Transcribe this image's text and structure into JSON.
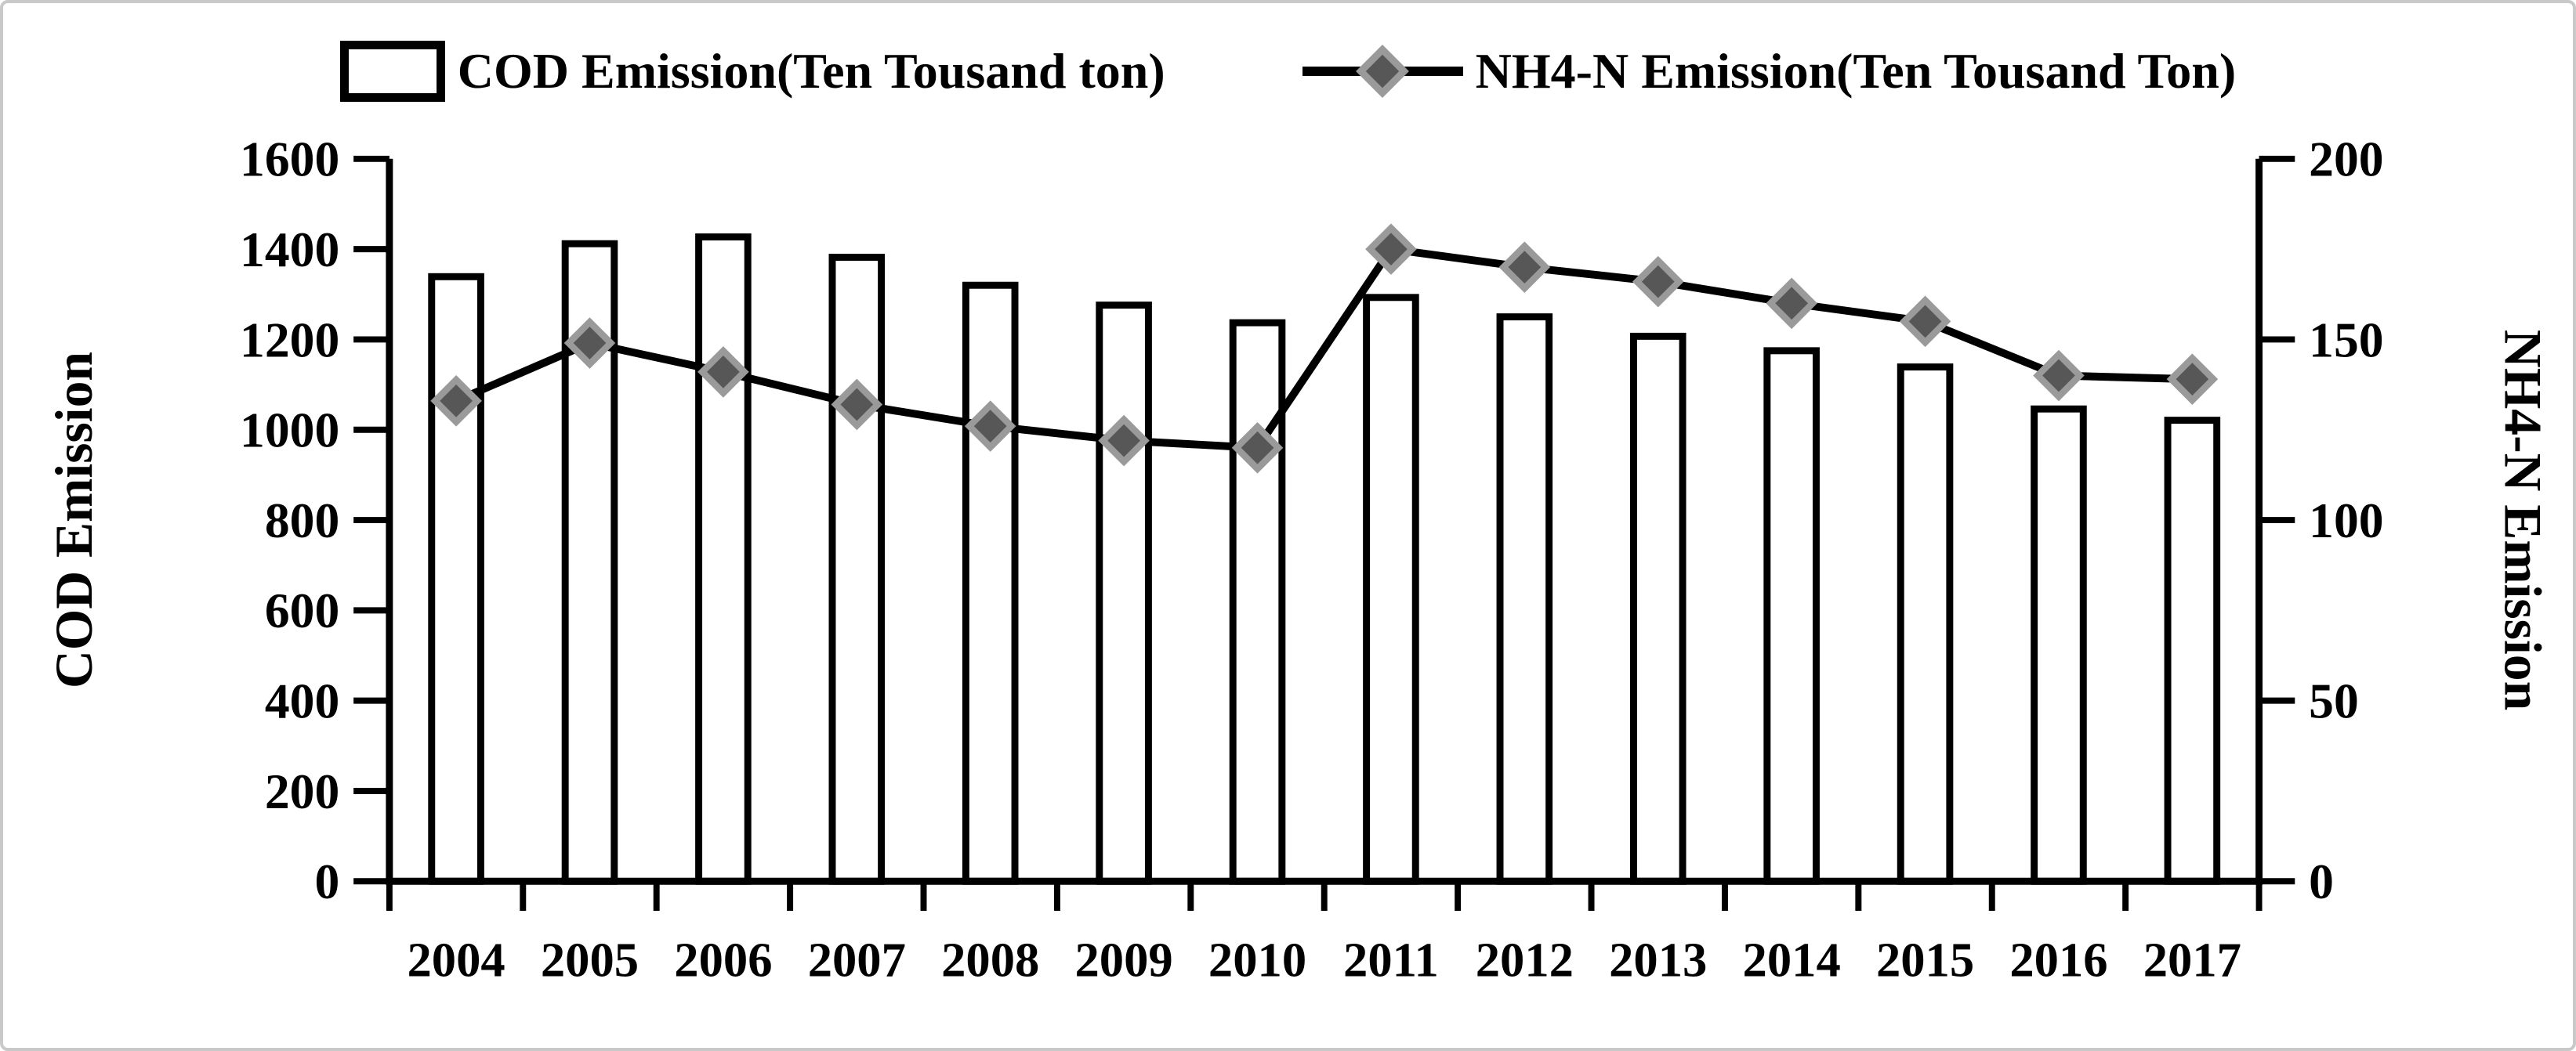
{
  "chart_data": {
    "type": "combo",
    "categories": [
      "2004",
      "2005",
      "2006",
      "2007",
      "2008",
      "2009",
      "2010",
      "2011",
      "2012",
      "2013",
      "2014",
      "2015",
      "2016",
      "2017"
    ],
    "series": [
      {
        "name": "COD Emission(Ten Tousand ton)",
        "type": "bar",
        "axis": "left",
        "values": [
          1339,
          1412,
          1427,
          1382,
          1320,
          1276,
          1237,
          1293,
          1250,
          1207,
          1175,
          1139,
          1046,
          1021
        ]
      },
      {
        "name": "NH4-N Emission(Ten Tousand Ton)",
        "type": "line",
        "axis": "right",
        "values": [
          133,
          149,
          141,
          132,
          126,
          122,
          120,
          175,
          170,
          166,
          160,
          155,
          140,
          139
        ]
      }
    ],
    "left_axis": {
      "label": "COD Emission",
      "min": 0,
      "max": 1600,
      "step": 200,
      "tick_labels": [
        "0",
        "200",
        "400",
        "600",
        "800",
        "1000",
        "1200",
        "1400",
        "1600"
      ]
    },
    "right_axis": {
      "label": "NH4-N Emission",
      "min": 0,
      "max": 200,
      "step": 50,
      "tick_labels": [
        "0",
        "50",
        "100",
        "150",
        "200"
      ]
    },
    "legend_position": "top",
    "grid": false,
    "styles": {
      "bar_fill": "#ffffff",
      "bar_stroke": "#000000",
      "line_color": "#000000",
      "marker_outer": "#9a9a9a",
      "marker_inner": "#575757",
      "axis_color": "#000000",
      "background": "#ffffff",
      "frame_border": "#c9c9c9"
    }
  }
}
